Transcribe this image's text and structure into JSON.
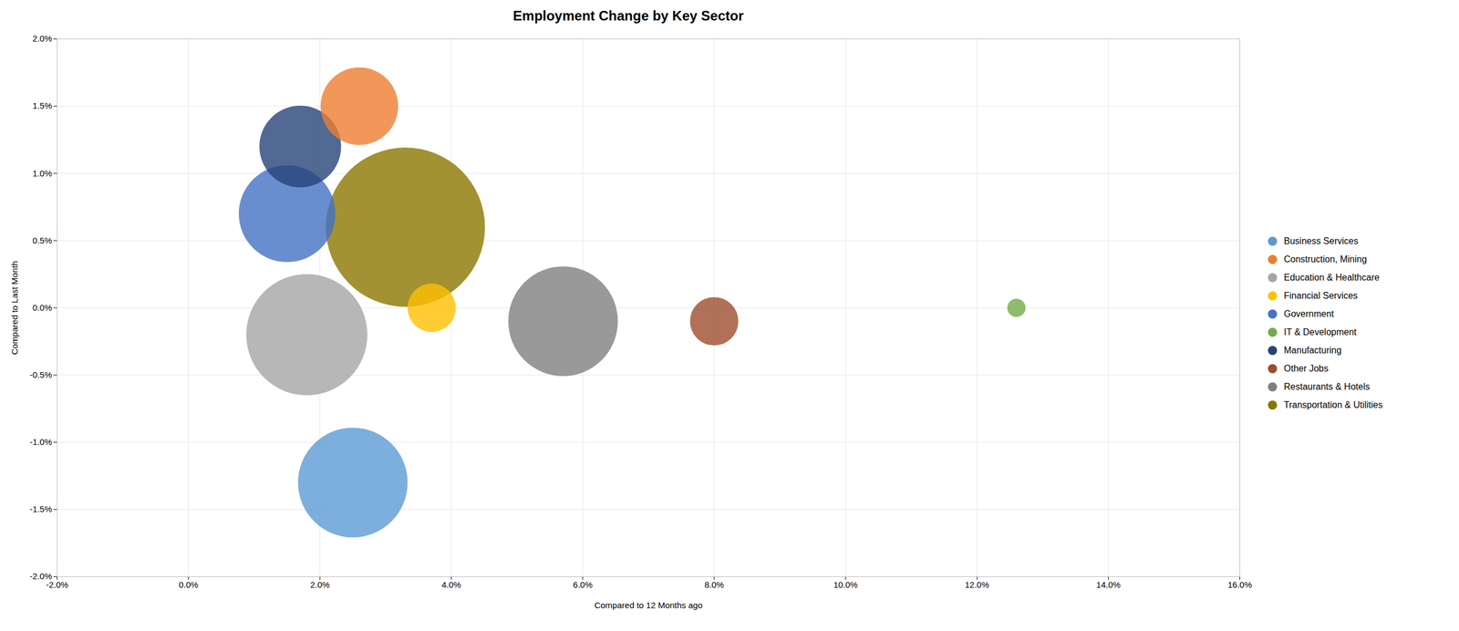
{
  "chart_data": {
    "type": "scatter",
    "title": "Employment Change by Key Sector",
    "xlabel": "Compared to 12 Months ago",
    "ylabel": "Compared to Last Month",
    "xlim": [
      -0.02,
      0.16
    ],
    "ylim": [
      -0.02,
      0.02
    ],
    "xticks": [
      {
        "value": -0.02,
        "label": "-2.0%"
      },
      {
        "value": 0.0,
        "label": "0.0%"
      },
      {
        "value": 0.02,
        "label": "2.0%"
      },
      {
        "value": 0.04,
        "label": "4.0%"
      },
      {
        "value": 0.06,
        "label": "6.0%"
      },
      {
        "value": 0.08,
        "label": "8.0%"
      },
      {
        "value": 0.1,
        "label": "10.0%"
      },
      {
        "value": 0.12,
        "label": "12.0%"
      },
      {
        "value": 0.14,
        "label": "14.0%"
      },
      {
        "value": 0.16,
        "label": "16.0%"
      }
    ],
    "yticks": [
      {
        "value": -0.02,
        "label": "-2.0%"
      },
      {
        "value": -0.015,
        "label": "-1.5%"
      },
      {
        "value": -0.01,
        "label": "-1.0%"
      },
      {
        "value": -0.005,
        "label": "-0.5%"
      },
      {
        "value": 0.0,
        "label": "0.0%"
      },
      {
        "value": 0.005,
        "label": "0.5%"
      },
      {
        "value": 0.01,
        "label": "1.0%"
      },
      {
        "value": 0.015,
        "label": "1.5%"
      },
      {
        "value": 0.02,
        "label": "2.0%"
      }
    ],
    "grid": true,
    "legend": "right",
    "series": [
      {
        "name": "Business Services",
        "color": "#5B9BD5",
        "x": [
          0.025
        ],
        "y": [
          -0.013
        ],
        "size": [
          18000
        ]
      },
      {
        "name": "Construction, Mining",
        "color": "#ED7D31",
        "x": [
          0.026
        ],
        "y": [
          0.015
        ],
        "size": [
          9000
        ]
      },
      {
        "name": "Education & Healthcare",
        "color": "#A5A5A5",
        "x": [
          0.018
        ],
        "y": [
          -0.002
        ],
        "size": [
          22000
        ]
      },
      {
        "name": "Financial Services",
        "color": "#FFC000",
        "x": [
          0.037
        ],
        "y": [
          0.0
        ],
        "size": [
          3500
        ]
      },
      {
        "name": "Government",
        "color": "#4472C4",
        "x": [
          0.015
        ],
        "y": [
          0.007
        ],
        "size": [
          14000
        ]
      },
      {
        "name": "IT & Development",
        "color": "#70AD47",
        "x": [
          0.126
        ],
        "y": [
          0.0
        ],
        "size": [
          500
        ]
      },
      {
        "name": "Manufacturing",
        "color": "#264478",
        "x": [
          0.017
        ],
        "y": [
          0.012
        ],
        "size": [
          10000
        ]
      },
      {
        "name": "Other Jobs",
        "color": "#9E4C2E",
        "x": [
          0.08
        ],
        "y": [
          -0.001
        ],
        "size": [
          3500
        ]
      },
      {
        "name": "Restaurants & Hotels",
        "color": "#808080",
        "x": [
          0.057
        ],
        "y": [
          -0.001
        ],
        "size": [
          18000
        ]
      },
      {
        "name": "Transportation & Utilities",
        "color": "#8B7700",
        "x": [
          0.033
        ],
        "y": [
          0.006
        ],
        "size": [
          38000
        ]
      }
    ]
  }
}
